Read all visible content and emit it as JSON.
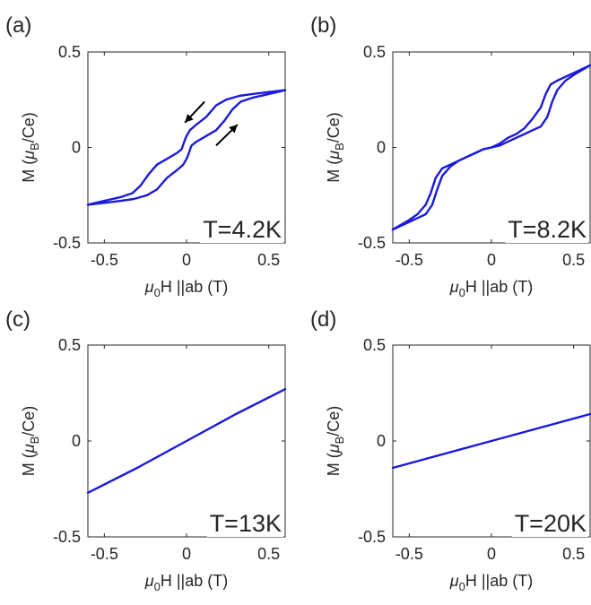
{
  "chart_data": [
    {
      "type": "line",
      "panel_label": "(a)",
      "annotation": "T=4.2K",
      "xlabel": {
        "mu": "μ",
        "sub0": "0",
        "rest": "H ||ab (T)"
      },
      "ylabel": {
        "pre": "M (",
        "mu": "μ",
        "subB": "B",
        "post": "/Ce)"
      },
      "xlim": [
        -0.6,
        0.6
      ],
      "ylim": [
        -0.5,
        0.5
      ],
      "xticks": [
        -0.5,
        0,
        0.5
      ],
      "yticks": [
        -0.5,
        0,
        0.5
      ],
      "xtick_labels": [
        "-0.5",
        "0",
        "0.5"
      ],
      "ytick_labels": [
        "-0.5",
        "0",
        "0.5"
      ],
      "arrows": [
        "down-left",
        "up-right"
      ],
      "color": "#1a1adb",
      "series": [
        {
          "x": [
            -0.6,
            -0.5,
            -0.4,
            -0.33,
            -0.28,
            -0.23,
            -0.18,
            -0.12,
            -0.06,
            -0.03,
            -0.01,
            0.0,
            0.02,
            0.06,
            0.12,
            0.18,
            0.24,
            0.28,
            0.32,
            0.4,
            0.5,
            0.6
          ],
          "y": [
            -0.3,
            -0.28,
            -0.26,
            -0.24,
            -0.2,
            -0.14,
            -0.09,
            -0.06,
            -0.03,
            -0.01,
            0.04,
            0.06,
            0.09,
            0.12,
            0.16,
            0.22,
            0.25,
            0.26,
            0.27,
            0.28,
            0.29,
            0.3
          ]
        },
        {
          "x": [
            -0.6,
            -0.5,
            -0.4,
            -0.32,
            -0.28,
            -0.24,
            -0.18,
            -0.12,
            -0.06,
            -0.02,
            0.0,
            0.01,
            0.03,
            0.06,
            0.12,
            0.18,
            0.23,
            0.28,
            0.33,
            0.4,
            0.5,
            0.6
          ],
          "y": [
            -0.3,
            -0.29,
            -0.28,
            -0.27,
            -0.26,
            -0.25,
            -0.22,
            -0.16,
            -0.12,
            -0.09,
            -0.06,
            -0.04,
            0.01,
            0.03,
            0.06,
            0.09,
            0.14,
            0.2,
            0.24,
            0.26,
            0.28,
            0.3
          ]
        }
      ]
    },
    {
      "type": "line",
      "panel_label": "(b)",
      "annotation": "T=8.2K",
      "xlabel": {
        "mu": "μ",
        "sub0": "0",
        "rest": "H ||ab (T)"
      },
      "ylabel": {
        "pre": "M (",
        "mu": "μ",
        "subB": "B",
        "post": "/Ce)"
      },
      "xlim": [
        -0.6,
        0.6
      ],
      "ylim": [
        -0.5,
        0.5
      ],
      "xticks": [
        -0.5,
        0,
        0.5
      ],
      "yticks": [
        -0.5,
        0,
        0.5
      ],
      "xtick_labels": [
        "-0.5",
        "0",
        "0.5"
      ],
      "ytick_labels": [
        "-0.5",
        "0",
        "0.5"
      ],
      "color": "#1a1adb",
      "series": [
        {
          "x": [
            -0.6,
            -0.5,
            -0.45,
            -0.4,
            -0.37,
            -0.34,
            -0.3,
            -0.25,
            -0.2,
            -0.15,
            -0.1,
            -0.05,
            0.0,
            0.05,
            0.1,
            0.15,
            0.2,
            0.25,
            0.3,
            0.33,
            0.36,
            0.4,
            0.45,
            0.5,
            0.6
          ],
          "y": [
            -0.43,
            -0.38,
            -0.35,
            -0.3,
            -0.24,
            -0.16,
            -0.11,
            -0.09,
            -0.07,
            -0.05,
            -0.03,
            -0.01,
            0.0,
            0.02,
            0.05,
            0.07,
            0.1,
            0.15,
            0.21,
            0.28,
            0.33,
            0.35,
            0.37,
            0.39,
            0.43
          ]
        },
        {
          "x": [
            -0.6,
            -0.5,
            -0.45,
            -0.4,
            -0.36,
            -0.33,
            -0.3,
            -0.25,
            -0.2,
            -0.15,
            -0.1,
            -0.05,
            0.0,
            0.05,
            0.1,
            0.15,
            0.2,
            0.25,
            0.3,
            0.34,
            0.37,
            0.4,
            0.45,
            0.5,
            0.6
          ],
          "y": [
            -0.43,
            -0.39,
            -0.37,
            -0.35,
            -0.3,
            -0.22,
            -0.15,
            -0.1,
            -0.07,
            -0.05,
            -0.03,
            -0.01,
            0.0,
            0.01,
            0.03,
            0.05,
            0.07,
            0.09,
            0.11,
            0.16,
            0.24,
            0.3,
            0.35,
            0.38,
            0.43
          ]
        }
      ]
    },
    {
      "type": "line",
      "panel_label": "(c)",
      "annotation": "T=13K",
      "xlabel": {
        "mu": "μ",
        "sub0": "0",
        "rest": "H ||ab (T)"
      },
      "ylabel": {
        "pre": "M (",
        "mu": "μ",
        "subB": "B",
        "post": "/Ce)"
      },
      "xlim": [
        -0.6,
        0.6
      ],
      "ylim": [
        -0.5,
        0.5
      ],
      "xticks": [
        -0.5,
        0,
        0.5
      ],
      "yticks": [
        -0.5,
        0,
        0.5
      ],
      "xtick_labels": [
        "-0.5",
        "0",
        "0.5"
      ],
      "ytick_labels": [
        "-0.5",
        "0",
        "0.5"
      ],
      "color": "#1a1adb",
      "series": [
        {
          "x": [
            -0.6,
            -0.3,
            0.0,
            0.3,
            0.6
          ],
          "y": [
            -0.27,
            -0.14,
            0.0,
            0.14,
            0.27
          ]
        }
      ]
    },
    {
      "type": "line",
      "panel_label": "(d)",
      "annotation": "T=20K",
      "xlabel": {
        "mu": "μ",
        "sub0": "0",
        "rest": "H ||ab (T)"
      },
      "ylabel": {
        "pre": "M (",
        "mu": "μ",
        "subB": "B",
        "post": "/Ce)"
      },
      "xlim": [
        -0.6,
        0.6
      ],
      "ylim": [
        -0.5,
        0.5
      ],
      "xticks": [
        -0.5,
        0,
        0.5
      ],
      "yticks": [
        -0.5,
        0,
        0.5
      ],
      "xtick_labels": [
        "-0.5",
        "0",
        "0.5"
      ],
      "ytick_labels": [
        "-0.5",
        "0",
        "0.5"
      ],
      "color": "#1a1adb",
      "series": [
        {
          "x": [
            -0.6,
            -0.3,
            0.0,
            0.3,
            0.6
          ],
          "y": [
            -0.14,
            -0.07,
            0.0,
            0.07,
            0.14
          ]
        }
      ]
    }
  ]
}
